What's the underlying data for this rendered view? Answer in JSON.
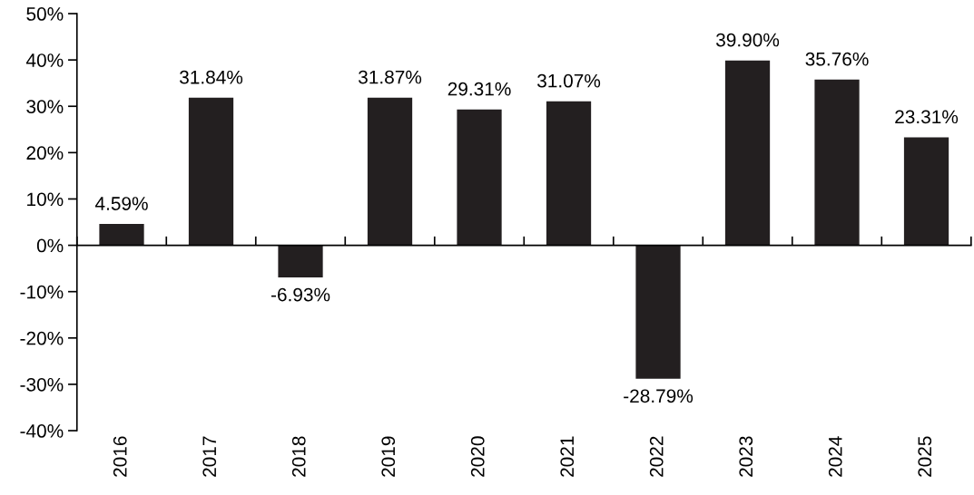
{
  "chart_data": {
    "type": "bar",
    "categories": [
      "2016",
      "2017",
      "2018",
      "2019",
      "2020",
      "2021",
      "2022",
      "2023",
      "2024",
      "2025"
    ],
    "values": [
      4.59,
      31.84,
      -6.93,
      31.87,
      29.31,
      31.07,
      -28.79,
      39.9,
      35.76,
      23.31
    ],
    "value_labels": [
      "4.59%",
      "31.84%",
      "-6.93%",
      "31.87%",
      "29.31%",
      "31.07%",
      "-28.79%",
      "39.90%",
      "35.76%",
      "23.31%"
    ],
    "color": "#231f20",
    "ylim": [
      -40,
      50
    ],
    "yticks": [
      {
        "value": -40,
        "label": "-40%"
      },
      {
        "value": -30,
        "label": "-30%"
      },
      {
        "value": -20,
        "label": "-20%"
      },
      {
        "value": -10,
        "label": "-10%"
      },
      {
        "value": 0,
        "label": "0%"
      },
      {
        "value": 10,
        "label": "10%"
      },
      {
        "value": 20,
        "label": "20%"
      },
      {
        "value": 30,
        "label": "30%"
      },
      {
        "value": 40,
        "label": "40%"
      },
      {
        "value": 50,
        "label": "50%"
      }
    ],
    "legend": false
  }
}
